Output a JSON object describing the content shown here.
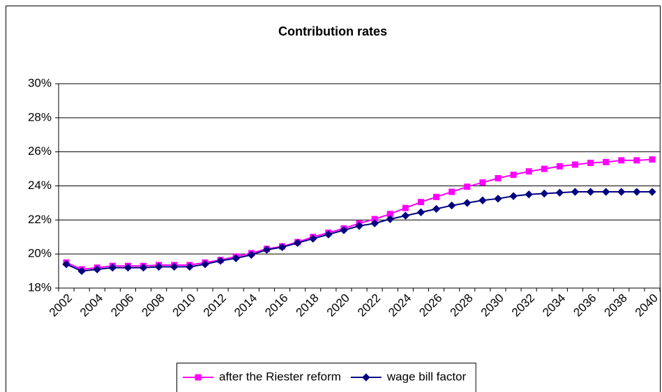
{
  "chart_data": {
    "type": "line",
    "title": "Contribution rates",
    "categories": [
      "2002",
      null,
      "2004",
      null,
      "2006",
      null,
      "2008",
      null,
      "2010",
      null,
      "2012",
      null,
      "2014",
      null,
      "2016",
      null,
      "2018",
      null,
      "2020",
      null,
      "2022",
      null,
      "2024",
      null,
      "2026",
      null,
      "2028",
      null,
      "2030",
      null,
      "2032",
      null,
      "2034",
      null,
      "2036",
      null,
      "2038",
      null,
      "2040"
    ],
    "series": [
      {
        "name": "after the Riester reform",
        "color": "#ff00ff",
        "marker": "square",
        "values": [
          19.5,
          19.1,
          19.2,
          19.3,
          19.3,
          19.3,
          19.35,
          19.35,
          19.35,
          19.5,
          19.65,
          19.85,
          20.05,
          20.3,
          20.45,
          20.7,
          21.0,
          21.25,
          21.5,
          21.8,
          22.05,
          22.35,
          22.7,
          23.05,
          23.35,
          23.65,
          23.95,
          24.2,
          24.45,
          24.65,
          24.85,
          25.0,
          25.15,
          25.25,
          25.35,
          25.4,
          25.5,
          25.5,
          25.55
        ]
      },
      {
        "name": "wage bill factor",
        "color": "#000080",
        "marker": "diamond",
        "values": [
          19.4,
          19.0,
          19.1,
          19.2,
          19.2,
          19.2,
          19.25,
          19.25,
          19.25,
          19.4,
          19.6,
          19.75,
          19.95,
          20.25,
          20.4,
          20.65,
          20.9,
          21.15,
          21.4,
          21.65,
          21.8,
          22.05,
          22.25,
          22.45,
          22.65,
          22.85,
          23.0,
          23.15,
          23.25,
          23.4,
          23.5,
          23.55,
          23.6,
          23.65,
          23.65,
          23.65,
          23.65,
          23.65,
          23.65
        ]
      }
    ],
    "ylim": [
      18,
      30
    ],
    "yticks": [
      {
        "value": 18,
        "label": "18%"
      },
      {
        "value": 20,
        "label": "20%"
      },
      {
        "value": 22,
        "label": "22%"
      },
      {
        "value": 24,
        "label": "24%"
      },
      {
        "value": 26,
        "label": "26%"
      },
      {
        "value": 28,
        "label": "28%"
      },
      {
        "value": 30,
        "label": "30%"
      }
    ],
    "grid": true,
    "legend": "bottom"
  }
}
